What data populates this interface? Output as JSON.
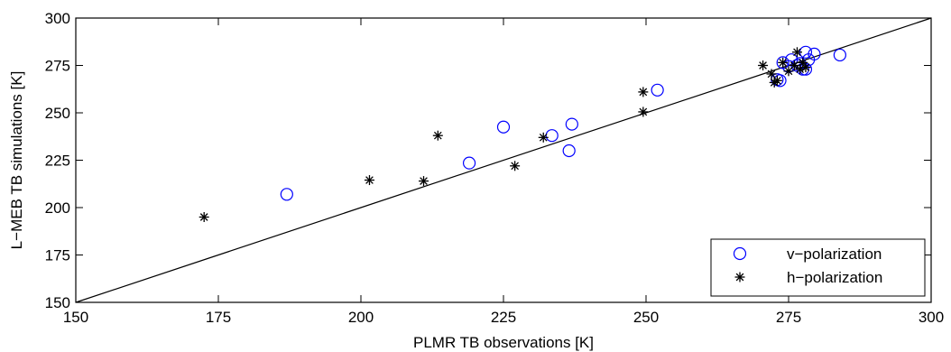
{
  "chart_data": {
    "type": "scatter",
    "xlabel": "PLMR TB observations [K]",
    "ylabel": "L−MEB TB simulations [K]",
    "xlim": [
      150,
      300
    ],
    "ylim": [
      150,
      300
    ],
    "xticks": [
      150,
      175,
      200,
      225,
      250,
      275,
      300
    ],
    "yticks": [
      150,
      175,
      200,
      225,
      250,
      275,
      300
    ],
    "xtick_labels": [
      "150",
      "175",
      "200",
      "225",
      "250",
      "275",
      "300"
    ],
    "ytick_labels": [
      "150",
      "175",
      "200",
      "225",
      "250",
      "275",
      "300"
    ],
    "grid": false,
    "legend_position": "bottom-right",
    "reference_line": {
      "x": [
        150,
        300
      ],
      "y": [
        150,
        300
      ]
    },
    "series": [
      {
        "name": "v−polarization",
        "marker": "circle",
        "color": "#0000ff",
        "x": [
          187,
          219,
          225,
          233.5,
          236.5,
          237,
          252,
          273,
          273.5,
          274,
          275,
          275.5,
          276.5,
          277,
          277.5,
          278,
          278,
          278.5,
          279.5,
          284
        ],
        "y": [
          207,
          223.5,
          242.5,
          238,
          230,
          244,
          262,
          267.5,
          267,
          276.5,
          274.5,
          278,
          275,
          276,
          273,
          273,
          282,
          278,
          281,
          280.5
        ]
      },
      {
        "name": "h−polarization",
        "marker": "asterisk",
        "color": "#000000",
        "x": [
          172.5,
          201.5,
          211,
          213.5,
          227,
          232,
          249.5,
          249.5,
          270.5,
          272,
          272.5,
          273,
          274,
          275,
          276,
          276.5,
          277,
          277.5,
          278
        ],
        "y": [
          195,
          214.5,
          214,
          238,
          222,
          237,
          250.5,
          261,
          275,
          270.5,
          266,
          267,
          276.5,
          272,
          275,
          282,
          273,
          276.5,
          274
        ]
      }
    ]
  }
}
